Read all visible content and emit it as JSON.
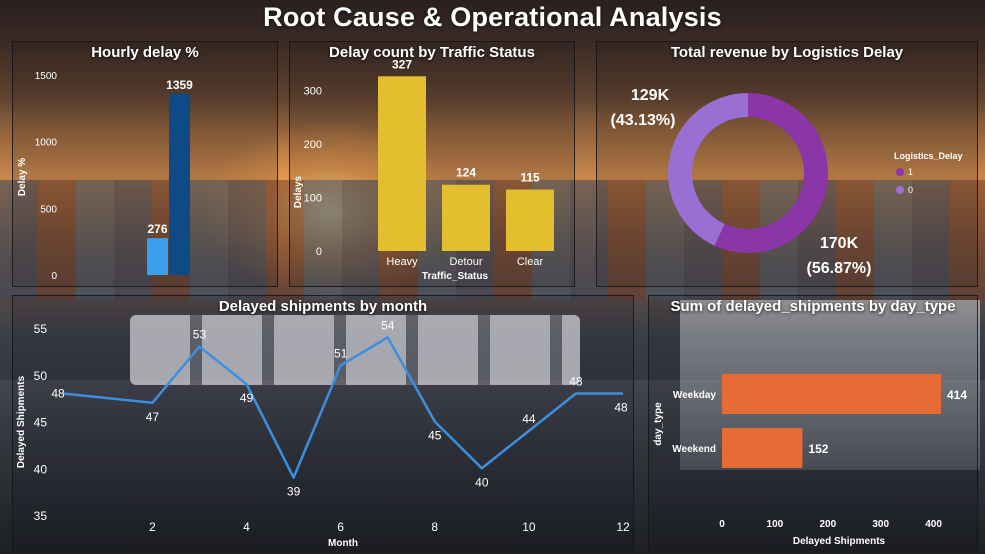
{
  "page_title": "Root Cause & Operational Analysis",
  "colors": {
    "dark_blue": "#0d4a86",
    "light_blue": "#3aa0ee",
    "yellow": "#e3bf2f",
    "purple_1": "#8a35a8",
    "purple_0": "#9a6fd3",
    "line_blue": "#3b8fe0",
    "orange": "#e66c35"
  },
  "chart_data": [
    {
      "id": "hourly",
      "type": "bar",
      "title": "Hourly delay %",
      "ylabel": "Delay %",
      "ylim": [
        0,
        1500
      ],
      "yticks": [
        "0",
        "500",
        "1000",
        "1500"
      ],
      "series": [
        {
          "value": 276,
          "label": "276"
        },
        {
          "value": 1359,
          "label": "1359"
        }
      ]
    },
    {
      "id": "traffic",
      "type": "bar",
      "title": "Delay count by Traffic Status",
      "xlabel": "Traffic_Status",
      "ylabel": "Delays",
      "ylim": [
        0,
        350
      ],
      "yticks": [
        "0",
        "100",
        "200",
        "300"
      ],
      "categories": [
        "Heavy",
        "Detour",
        "Clear"
      ],
      "values": [
        327,
        124,
        115
      ],
      "labels": [
        "327",
        "124",
        "115"
      ]
    },
    {
      "id": "revenue",
      "type": "pie",
      "title": "Total revenue by Logistics Delay",
      "legend_title": "Logistics_Delay",
      "legend_position": "right",
      "slices": [
        {
          "name": "1",
          "value": 170,
          "label": "170K",
          "pct": "(56.87%)"
        },
        {
          "name": "0",
          "value": 129,
          "label": "129K",
          "pct": "(43.13%)"
        }
      ]
    },
    {
      "id": "monthly",
      "type": "line",
      "title": "Delayed shipments by month",
      "xlabel": "Month",
      "ylabel": "Delayed Shipments",
      "ylim": [
        35,
        55
      ],
      "xlim": [
        0.1,
        12
      ],
      "yticks": [
        "35",
        "40",
        "45",
        "50",
        "55"
      ],
      "xticks": [
        "2",
        "4",
        "6",
        "8",
        "10",
        "12"
      ],
      "x": [
        0.1,
        2,
        3,
        4,
        5,
        6,
        7,
        8,
        9,
        10,
        11,
        12
      ],
      "values": [
        48,
        47,
        53,
        49,
        39,
        51,
        54,
        45,
        40,
        44,
        48,
        48
      ],
      "labels": [
        "48",
        "47",
        "53",
        "49",
        "39",
        "51",
        "54",
        "45",
        "40",
        "44",
        "48",
        "48"
      ]
    },
    {
      "id": "daytype",
      "type": "bar",
      "orientation": "horizontal",
      "title": "Sum of delayed_shipments by day_type",
      "xlabel": "Delayed Shipments",
      "ylabel": "day_type",
      "xlim": [
        0,
        414
      ],
      "xticks": [
        "0",
        "100",
        "200",
        "300",
        "400"
      ],
      "categories": [
        "Weekday",
        "Weekend"
      ],
      "values": [
        414,
        152
      ],
      "labels": [
        "414",
        "152"
      ]
    }
  ]
}
